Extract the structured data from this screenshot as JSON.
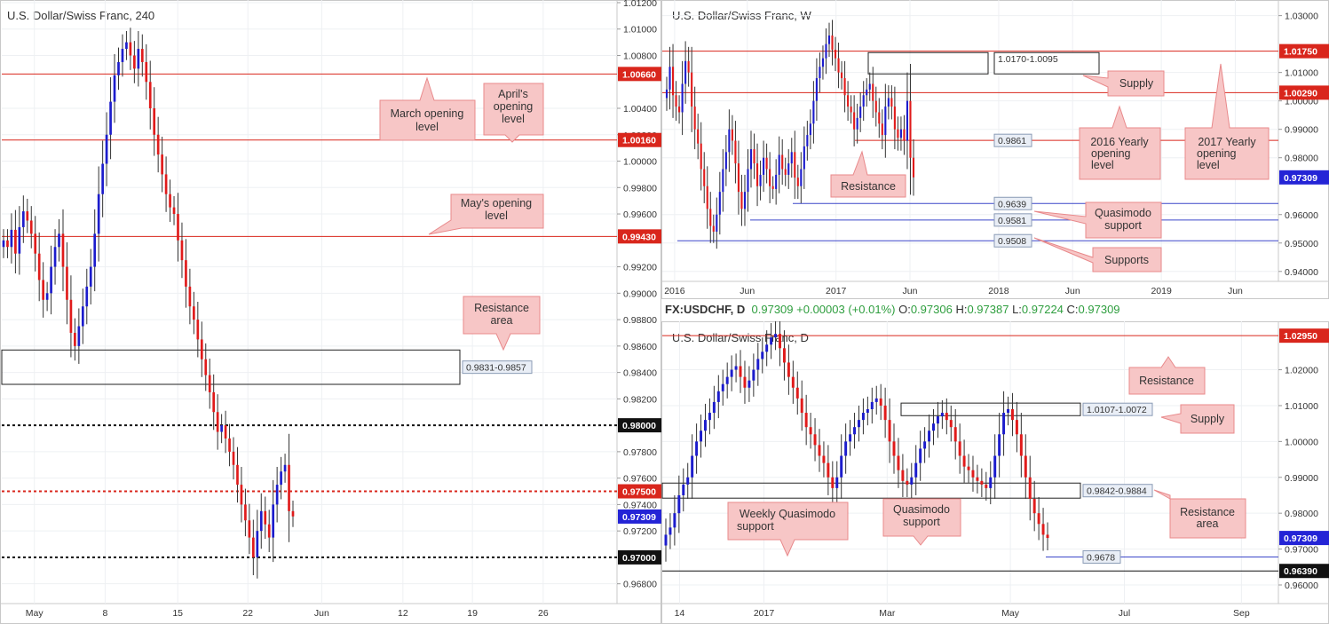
{
  "header": {
    "symbol": "FX:USDCHF, D",
    "last": "0.97309",
    "change": "+0.00003 (+0.01%)",
    "o_label": "O:",
    "o": "0.97306",
    "h_label": "H:",
    "h": "0.97387",
    "l_label": "L:",
    "l": "0.97224",
    "c_label": "C:",
    "c": "0.97309"
  },
  "colors": {
    "up": "#1c1ccc",
    "down": "#e01b1b",
    "resistance": "#d9261c",
    "support": "#3b46c9",
    "callout_fill": "#f7c6c6",
    "callout_stroke": "#e8898b"
  },
  "chart_data": [
    {
      "id": "h4",
      "type": "candlestick",
      "title": "U.S. Dollar/Swiss Franc, 240",
      "ylim": [
        0.9665,
        1.0122
      ],
      "y_ticks": [
        "1.01200",
        "1.01000",
        "1.00800",
        "1.00400",
        "1.00200",
        "1.00000",
        "0.99800",
        "0.99600",
        "0.99200",
        "0.99000",
        "0.98800",
        "0.98600",
        "0.98400",
        "0.98200",
        "0.97800",
        "0.97600",
        "0.97400",
        "0.97200",
        "0.96800"
      ],
      "y_tick_values": [
        1.012,
        1.01,
        1.008,
        1.004,
        1.002,
        1.0,
        0.998,
        0.996,
        0.992,
        0.99,
        0.988,
        0.986,
        0.984,
        0.982,
        0.978,
        0.976,
        0.974,
        0.972,
        0.968
      ],
      "x_ticks": [
        "May",
        "8",
        "15",
        "22",
        "Jun",
        "12",
        "19",
        "26"
      ],
      "x_tick_pos": [
        0.053,
        0.168,
        0.286,
        0.4,
        0.52,
        0.652,
        0.765,
        0.88
      ],
      "levels": [
        {
          "value": 1.0066,
          "label": "1.00660",
          "style": "solid",
          "color": "#d9261c"
        },
        {
          "value": 1.0016,
          "label": "1.00160",
          "style": "solid",
          "color": "#d9261c"
        },
        {
          "value": 0.9943,
          "label": "0.99430",
          "style": "solid",
          "color": "#d9261c"
        },
        {
          "value": 0.98,
          "label": "0.98000",
          "style": "dashed",
          "color": "#111111"
        },
        {
          "value": 0.975,
          "label": "0.97500",
          "style": "dashed",
          "color": "#d9261c"
        },
        {
          "value": 0.97,
          "label": "0.97000",
          "style": "dashed",
          "color": "#111111"
        }
      ],
      "current": {
        "value": 0.97309,
        "label": "0.97309"
      },
      "zones": [
        {
          "top": 0.9857,
          "bottom": 0.9831,
          "label": "0.9831-0.9857"
        }
      ],
      "callouts": [
        {
          "text": [
            "March opening",
            "level"
          ]
        },
        {
          "text": [
            "April's",
            "opening",
            "level"
          ]
        },
        {
          "text": [
            "May's opening",
            "level"
          ]
        },
        {
          "text": [
            "Resistance",
            "area"
          ]
        }
      ],
      "closes": [
        0.994,
        0.9935,
        0.9948,
        0.993,
        0.995,
        0.9962,
        0.9955,
        0.9945,
        0.993,
        0.991,
        0.9895,
        0.99,
        0.992,
        0.9935,
        0.9945,
        0.992,
        0.9895,
        0.987,
        0.986,
        0.9875,
        0.989,
        0.9905,
        0.992,
        0.9945,
        0.9975,
        0.9998,
        1.002,
        1.0045,
        1.0065,
        1.0075,
        1.0085,
        1.009,
        1.008,
        1.007,
        1.0085,
        1.0075,
        1.006,
        1.004,
        1.002,
        1.0005,
        0.999,
        0.9975,
        0.9965,
        0.996,
        0.994,
        0.9925,
        0.9905,
        0.989,
        0.988,
        0.9865,
        0.985,
        0.9838,
        0.9825,
        0.981,
        0.9795,
        0.98,
        0.979,
        0.978,
        0.977,
        0.9755,
        0.974,
        0.9728,
        0.9715,
        0.97,
        0.972,
        0.9735,
        0.9725,
        0.9715,
        0.974,
        0.9755,
        0.9765,
        0.977,
        0.9735,
        0.9731
      ]
    },
    {
      "id": "weekly",
      "type": "candlestick",
      "title": "U.S. Dollar/Swiss Franc, W",
      "ylim": [
        0.9365,
        1.0355
      ],
      "y_ticks": [
        "1.03000",
        "1.01000",
        "1.00000",
        "0.99000",
        "0.98000",
        "0.96000",
        "0.95000",
        "0.94000"
      ],
      "y_tick_values": [
        1.03,
        1.01,
        1.0,
        0.99,
        0.98,
        0.96,
        0.95,
        0.94
      ],
      "x_ticks": [
        "2016",
        "Jun",
        "2017",
        "Jun",
        "2018",
        "Jun",
        "2019",
        "Jun"
      ],
      "x_tick_pos": [
        0.02,
        0.138,
        0.282,
        0.402,
        0.546,
        0.666,
        0.81,
        0.93
      ],
      "levels": [
        {
          "value": 1.0175,
          "label": "1.01750",
          "style": "solid",
          "color": "#d9261c"
        },
        {
          "value": 1.0029,
          "label": "1.00290",
          "style": "solid",
          "color": "#d9261c"
        },
        {
          "value": 0.9861,
          "label": "0.9861",
          "style": "solid",
          "color": "#d9261c",
          "boxed": true
        },
        {
          "value": 0.9639,
          "label": "0.9639",
          "style": "solid",
          "color": "#3b46c9",
          "boxed": true
        },
        {
          "value": 0.9581,
          "label": "0.9581",
          "style": "solid",
          "color": "#3b46c9",
          "boxed": true
        },
        {
          "value": 0.9508,
          "label": "0.9508",
          "style": "solid",
          "color": "#3b46c9",
          "boxed": true
        }
      ],
      "current": {
        "value": 0.97309,
        "label": "0.97309"
      },
      "zones": [
        {
          "top": 1.017,
          "bottom": 1.0095,
          "label": "1.0170-1.0095"
        }
      ],
      "callouts": [
        {
          "text": [
            "Supply"
          ]
        },
        {
          "text": [
            "2016 Yearly",
            "opening",
            "level"
          ]
        },
        {
          "text": [
            "2017 Yearly",
            "opening",
            "level"
          ]
        },
        {
          "text": [
            "Resistance"
          ]
        },
        {
          "text": [
            "Quasimodo",
            "support"
          ]
        },
        {
          "text": [
            "Supports"
          ]
        }
      ],
      "closes": [
        1.004,
        1.012,
        1.002,
        0.998,
        0.996,
        1.006,
        1.014,
        1.01,
        0.998,
        0.99,
        0.985,
        0.976,
        0.97,
        0.962,
        0.956,
        0.954,
        0.96,
        0.968,
        0.976,
        0.982,
        0.99,
        0.986,
        0.978,
        0.968,
        0.962,
        0.968,
        0.976,
        0.983,
        0.978,
        0.97,
        0.974,
        0.98,
        0.976,
        0.97,
        0.969,
        0.974,
        0.981,
        0.976,
        0.974,
        0.978,
        0.982,
        0.973,
        0.97,
        0.976,
        0.984,
        0.988,
        0.992,
        1.0,
        1.008,
        1.012,
        1.015,
        1.02,
        1.023,
        1.018,
        1.015,
        1.01,
        1.008,
        1.002,
        0.998,
        0.996,
        0.99,
        0.994,
        0.998,
        1.002,
        1.004,
        1.006,
        1.0,
        0.996,
        0.992,
        0.988,
        0.998,
        1.001,
        0.998,
        0.99,
        0.987,
        0.99,
        0.986,
        1.0,
        0.98,
        0.9731
      ]
    },
    {
      "id": "daily",
      "type": "candlestick",
      "title": "U.S. Dollar/Swiss Franc, D",
      "ylim": [
        0.9548,
        1.0335
      ],
      "y_ticks": [
        "1.02000",
        "1.01000",
        "1.00000",
        "0.99000",
        "0.98000",
        "0.97000",
        "0.96000"
      ],
      "y_tick_values": [
        1.02,
        1.01,
        1.0,
        0.99,
        0.98,
        0.97,
        0.96
      ],
      "x_ticks": [
        "14",
        "2017",
        "Mar",
        "May",
        "Jul",
        "Sep"
      ],
      "x_tick_pos": [
        0.028,
        0.165,
        0.365,
        0.565,
        0.75,
        0.94
      ],
      "levels": [
        {
          "value": 1.0295,
          "label": "1.02950",
          "style": "solid",
          "color": "#d9261c"
        },
        {
          "value": 0.9678,
          "label": "0.9678",
          "style": "solid",
          "color": "#3b46c9",
          "boxed": true
        },
        {
          "value": 0.9639,
          "label": "0.96390",
          "style": "solid",
          "color": "#111111"
        }
      ],
      "current": {
        "value": 0.97309,
        "label": "0.97309"
      },
      "zones": [
        {
          "top": 1.0107,
          "bottom": 1.0072,
          "label": "1.0107-1.0072"
        },
        {
          "top": 0.9884,
          "bottom": 0.9842,
          "label": "0.9842-0.9884"
        }
      ],
      "callouts": [
        {
          "text": [
            "Resistance"
          ]
        },
        {
          "text": [
            "Supply"
          ]
        },
        {
          "text": [
            "Resistance",
            "area"
          ]
        },
        {
          "text": [
            "Weekly Quasimodo",
            "support"
          ]
        },
        {
          "text": [
            "Quasimodo",
            "support"
          ]
        }
      ],
      "closes": [
        0.974,
        0.976,
        0.98,
        0.985,
        0.988,
        0.99,
        0.996,
        1.0,
        1.003,
        1.006,
        1.008,
        1.011,
        1.014,
        1.016,
        1.018,
        1.02,
        1.021,
        1.018,
        1.015,
        1.017,
        1.02,
        1.023,
        1.025,
        1.027,
        1.029,
        1.03,
        1.026,
        1.022,
        1.018,
        1.015,
        1.012,
        1.008,
        1.004,
        1.002,
        0.999,
        0.996,
        0.994,
        0.99,
        0.987,
        0.99,
        0.996,
        1.0,
        1.002,
        1.004,
        1.006,
        1.008,
        1.009,
        1.011,
        1.012,
        1.01,
        1.006,
        1.0,
        0.996,
        0.992,
        0.989,
        0.988,
        0.99,
        0.994,
        0.998,
        1.0,
        1.003,
        1.005,
        1.007,
        1.008,
        1.006,
        1.004,
        1.0,
        0.996,
        0.993,
        0.992,
        0.99,
        0.989,
        0.988,
        0.987,
        0.99,
        0.996,
        1.002,
        1.008,
        1.009,
        1.006,
        1.002,
        0.996,
        0.99,
        0.984,
        0.98,
        0.977,
        0.974,
        0.9731
      ]
    }
  ]
}
